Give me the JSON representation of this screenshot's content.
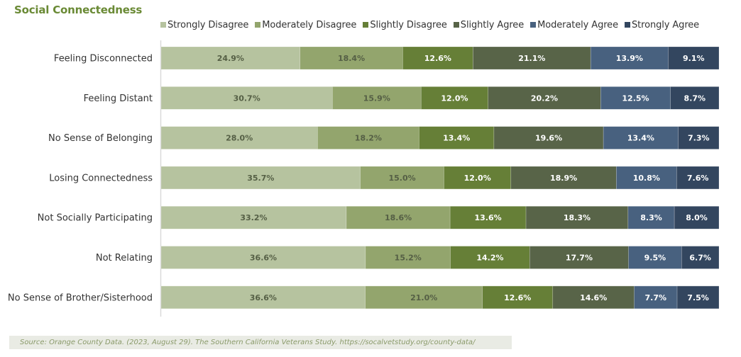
{
  "chart_data": {
    "type": "bar",
    "orientation": "horizontal",
    "stacked": true,
    "normalized": true,
    "title": "Social Connectedness",
    "xlabel": "",
    "ylabel": "",
    "xlim": [
      0,
      100
    ],
    "grid": false,
    "legend_position": "top",
    "categories": [
      "Feeling Disconnected",
      "Feeling Distant",
      "No Sense of Belonging",
      "Losing Connectedness",
      "Not Socially Participating",
      "Not Relating",
      "No Sense of Brother/Sisterhood"
    ],
    "series": [
      {
        "name": "Strongly Disagree",
        "color": "#b6c39f",
        "label_color": "#555f45",
        "values": [
          24.9,
          30.7,
          28.0,
          35.7,
          33.2,
          36.6,
          36.6
        ]
      },
      {
        "name": "Moderately Disagree",
        "color": "#93a56d",
        "label_color": "#555f45",
        "values": [
          18.4,
          15.9,
          18.2,
          15.0,
          18.6,
          15.2,
          21.0
        ]
      },
      {
        "name": "Slightly Disagree",
        "color": "#667f37",
        "label_color": "#ffffff",
        "values": [
          12.6,
          12.0,
          13.4,
          12.0,
          13.6,
          14.2,
          12.6
        ]
      },
      {
        "name": "Slightly Agree",
        "color": "#586448",
        "label_color": "#ffffff",
        "values": [
          21.1,
          20.2,
          19.6,
          18.9,
          18.3,
          17.7,
          14.6
        ]
      },
      {
        "name": "Moderately Agree",
        "color": "#48617f",
        "label_color": "#ffffff",
        "values": [
          13.9,
          12.5,
          13.4,
          10.8,
          8.3,
          9.5,
          7.7
        ]
      },
      {
        "name": "Strongly Agree",
        "color": "#33465f",
        "label_color": "#ffffff",
        "values": [
          9.1,
          8.7,
          7.3,
          7.6,
          8.0,
          6.7,
          7.5
        ]
      }
    ],
    "value_label_suffix": "%"
  },
  "footer": {
    "source": "Source: Orange County Data. (2023, August 29). The Southern California Veterans Study. https://socalvetstudy.org/county-data/"
  },
  "colors": {
    "title": "#6a8a35",
    "axis": "#d9d9d9"
  }
}
